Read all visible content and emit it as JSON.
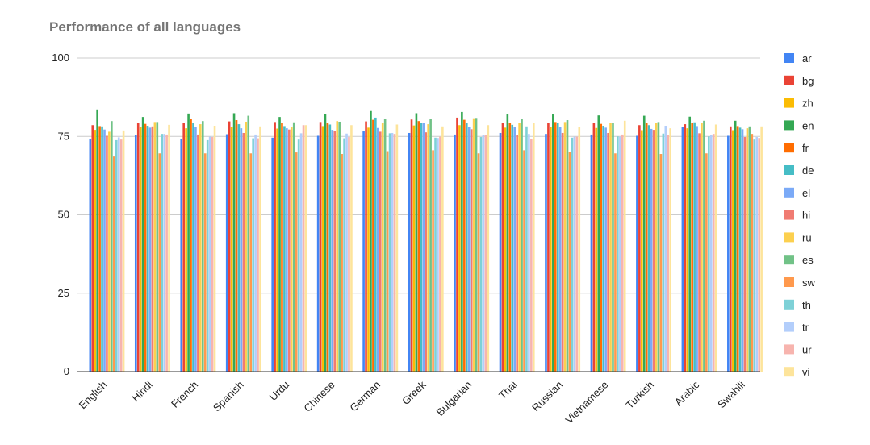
{
  "chart_data": {
    "type": "bar",
    "title": "Performance of all languages",
    "xlabel": "",
    "ylabel": "",
    "ylim": [
      0,
      100
    ],
    "yticks": [
      "0",
      "25",
      "50",
      "75",
      "100"
    ],
    "grid": true,
    "legend_position": "right",
    "categories": [
      "English",
      "Hindi",
      "French",
      "Spanish",
      "Urdu",
      "Chinese",
      "German",
      "Greek",
      "Bulgarian",
      "Thai",
      "Russian",
      "Vietnamese",
      "Turkish",
      "Arabic",
      "Swahili"
    ],
    "series": [
      {
        "name": "ar",
        "color": "#4285F4",
        "values": [
          74.3,
          75.4,
          74.3,
          75.7,
          74.6,
          75.2,
          76.6,
          76.1,
          75.6,
          76.1,
          75.8,
          75.6,
          75.2,
          77.9,
          75.2
        ]
      },
      {
        "name": "bg",
        "color": "#EA4335",
        "values": [
          78.6,
          79.3,
          79.3,
          79.8,
          79.6,
          79.6,
          79.8,
          80.4,
          81.0,
          79.2,
          79.3,
          79.3,
          78.6,
          78.9,
          78.2
        ]
      },
      {
        "name": "zh",
        "color": "#FBBC04",
        "values": [
          77.1,
          78.0,
          77.6,
          78.1,
          77.5,
          78.3,
          77.8,
          78.5,
          78.6,
          77.8,
          77.9,
          77.7,
          77.0,
          77.6,
          77.0
        ]
      },
      {
        "name": "en",
        "color": "#34A853",
        "values": [
          83.6,
          81.2,
          82.3,
          82.4,
          81.2,
          82.2,
          83.1,
          82.4,
          82.8,
          82.0,
          82.0,
          81.7,
          81.6,
          81.3,
          80.0
        ]
      },
      {
        "name": "fr",
        "color": "#FF6D01",
        "values": [
          78.3,
          79.0,
          80.5,
          80.2,
          79.2,
          79.3,
          80.3,
          79.9,
          80.3,
          79.3,
          79.6,
          79.0,
          79.3,
          79.2,
          78.3
        ]
      },
      {
        "name": "de",
        "color": "#46BDC6",
        "values": [
          78.2,
          78.4,
          79.2,
          78.9,
          78.3,
          78.8,
          81.0,
          79.3,
          79.3,
          78.7,
          79.4,
          78.4,
          78.6,
          79.5,
          77.8
        ]
      },
      {
        "name": "el",
        "color": "#7BAAF7",
        "values": [
          77.2,
          77.8,
          78.0,
          77.6,
          77.6,
          77.1,
          77.7,
          79.2,
          78.1,
          78.1,
          78.1,
          77.8,
          77.4,
          78.3,
          77.3
        ]
      },
      {
        "name": "hi",
        "color": "#F07B72",
        "values": [
          75.2,
          78.2,
          75.6,
          76.1,
          77.2,
          76.8,
          76.5,
          76.3,
          77.3,
          75.4,
          76.1,
          76.1,
          77.1,
          76.0,
          74.8
        ]
      },
      {
        "name": "ru",
        "color": "#FCD04F",
        "values": [
          76.5,
          79.6,
          78.9,
          79.7,
          78.0,
          79.9,
          79.2,
          78.9,
          80.8,
          79.2,
          79.6,
          79.2,
          79.3,
          79.3,
          77.6
        ]
      },
      {
        "name": "es",
        "color": "#71C287",
        "values": [
          79.9,
          79.6,
          79.9,
          81.6,
          79.5,
          79.7,
          80.6,
          80.6,
          80.9,
          80.6,
          80.2,
          79.4,
          79.6,
          80.0,
          78.2
        ]
      },
      {
        "name": "sw",
        "color": "#FF994D",
        "values": [
          68.6,
          69.6,
          69.6,
          69.6,
          69.9,
          69.4,
          70.3,
          70.6,
          69.6,
          70.6,
          70.0,
          69.6,
          69.4,
          69.6,
          75.8
        ]
      },
      {
        "name": "th",
        "color": "#7ED1D7",
        "values": [
          73.8,
          75.8,
          73.8,
          74.4,
          74.0,
          74.4,
          76.0,
          74.6,
          74.8,
          78.2,
          74.6,
          75.0,
          75.9,
          75.0,
          74.0
        ]
      },
      {
        "name": "tr",
        "color": "#B3CEFB",
        "values": [
          74.7,
          75.8,
          74.9,
          75.6,
          76.0,
          75.9,
          76.1,
          74.5,
          75.4,
          75.8,
          74.9,
          74.9,
          78.4,
          75.4,
          74.8
        ]
      },
      {
        "name": "ur",
        "color": "#F7B4AE",
        "values": [
          74.0,
          75.6,
          74.8,
          74.4,
          78.6,
          74.8,
          75.8,
          74.9,
          75.4,
          74.3,
          74.9,
          75.6,
          75.4,
          75.8,
          74.5
        ]
      },
      {
        "name": "vi",
        "color": "#FDE49B",
        "values": [
          76.9,
          78.7,
          78.4,
          78.2,
          78.6,
          78.6,
          78.8,
          78.2,
          78.6,
          79.2,
          78.0,
          80.0,
          77.6,
          78.8,
          78.2
        ]
      }
    ]
  }
}
